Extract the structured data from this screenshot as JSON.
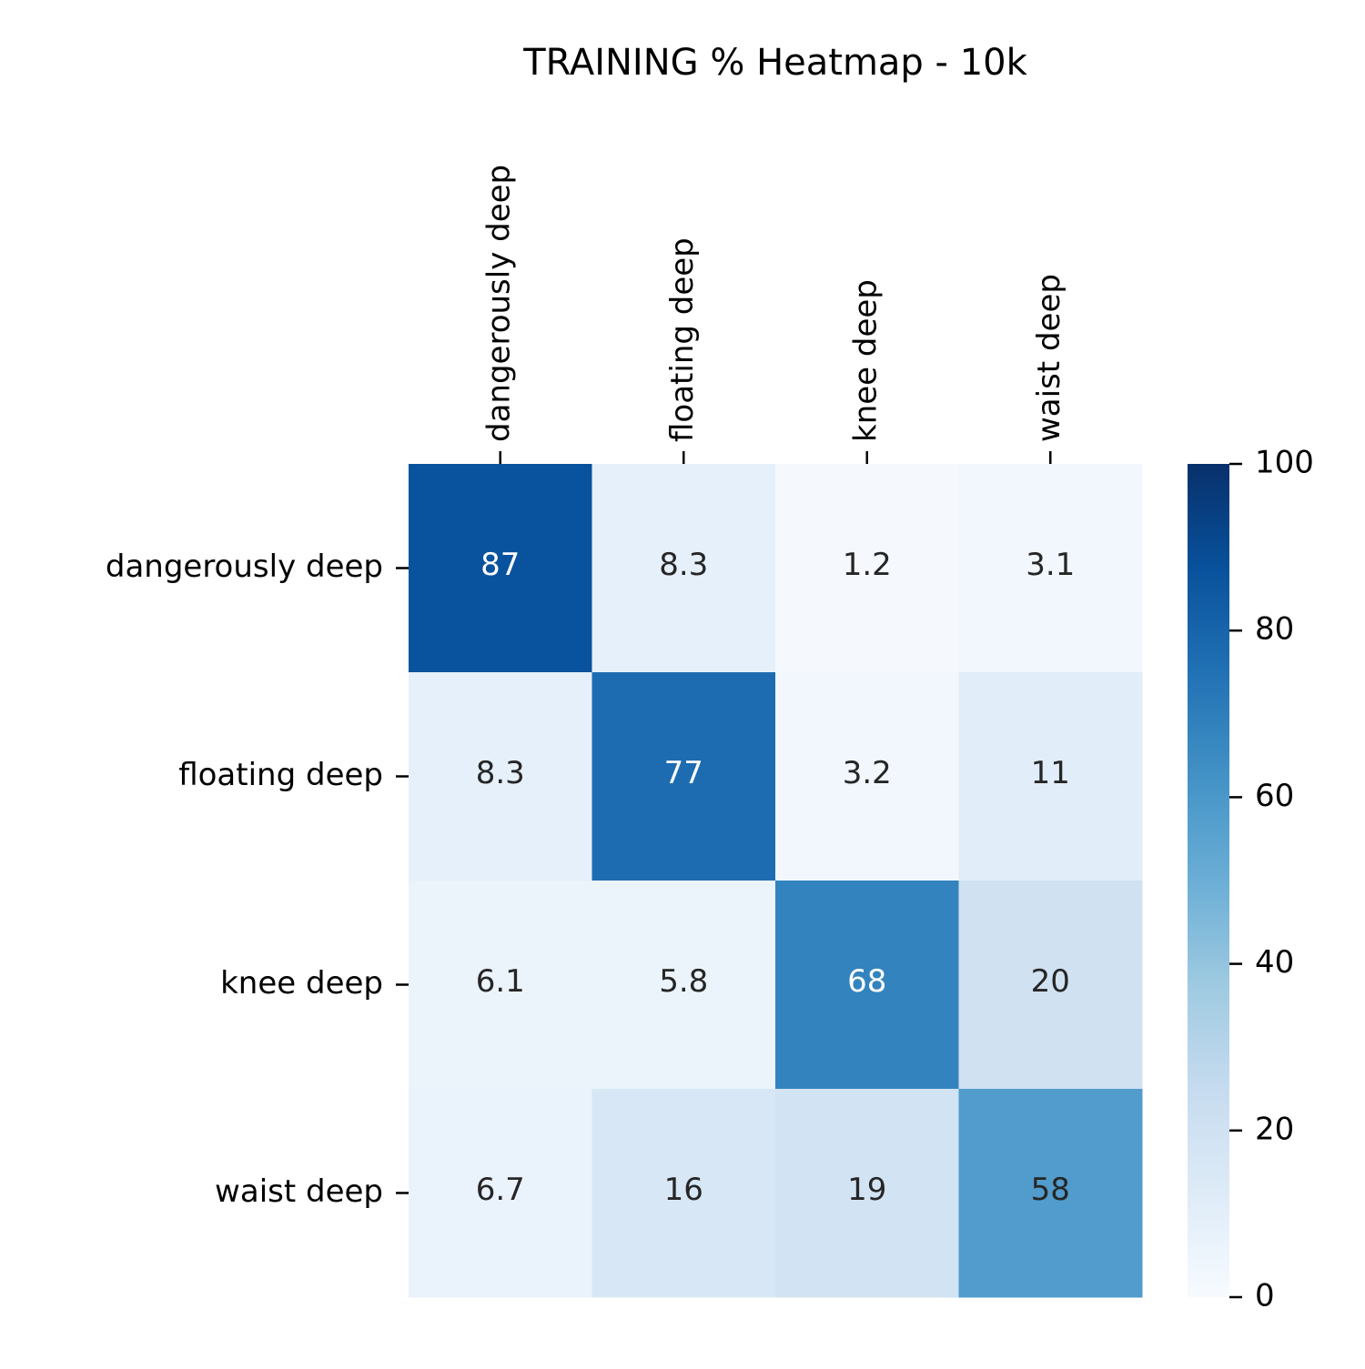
{
  "chart_data": {
    "type": "heatmap",
    "title": "TRAINING % Heatmap - 10k",
    "xlabel": "",
    "ylabel": "",
    "x_categories": [
      "dangerously deep",
      "floating deep",
      "knee deep",
      "waist deep"
    ],
    "y_categories": [
      "dangerously deep",
      "floating deep",
      "knee deep",
      "waist deep"
    ],
    "values": [
      [
        87,
        8.3,
        1.2,
        3.1
      ],
      [
        8.3,
        77,
        3.2,
        11
      ],
      [
        6.1,
        5.8,
        68,
        20
      ],
      [
        6.7,
        16,
        19,
        58
      ]
    ],
    "value_labels": [
      [
        "87",
        "8.3",
        "1.2",
        "3.1"
      ],
      [
        "8.3",
        "77",
        "3.2",
        "11"
      ],
      [
        "6.1",
        "5.8",
        "68",
        "20"
      ],
      [
        "6.7",
        "16",
        "19",
        "58"
      ]
    ],
    "colormap": "Blues",
    "colormap_stops": [
      "#f7fbff",
      "#deebf7",
      "#c6dbef",
      "#9ecae1",
      "#6baed6",
      "#4292c6",
      "#2171b5",
      "#08519c",
      "#08306b"
    ],
    "vmin": 0,
    "vmax": 100,
    "colorbar_ticks": [
      0,
      20,
      40,
      60,
      80,
      100
    ],
    "x_tick_position": "top",
    "grid": false,
    "legend": "colorbar-right",
    "dark_text_color": "#262626",
    "light_text_color": "#ffffff"
  }
}
